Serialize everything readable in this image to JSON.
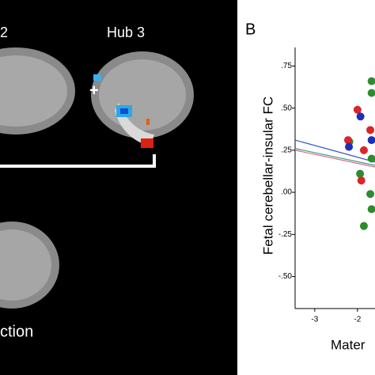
{
  "labels": {
    "hub2": "2",
    "hub3": "Hub 3",
    "plus": "+",
    "section": "ction",
    "panel": "B"
  },
  "chart_data": {
    "type": "scatter",
    "y_label": "Fetal cerebellar-insular FC",
    "x_label": "Mater",
    "xlim": [
      -3.46,
      -1.59
    ],
    "ylim": [
      -0.69,
      0.86
    ],
    "xticks": [
      -3,
      -2
    ],
    "yticks": [
      {
        "value": 0.75,
        "label": ".75"
      },
      {
        "value": 0.5,
        "label": ".50"
      },
      {
        "value": 0.25,
        "label": ".25"
      },
      {
        "value": 0,
        "label": ".00"
      },
      {
        "value": -0.25,
        "label": "-.25"
      },
      {
        "value": -0.5,
        "label": "-.50"
      }
    ],
    "series": [
      {
        "color": "#2e8b2e",
        "x": [
          -1.67,
          -1.67,
          -2.19,
          -1.67,
          -1.94,
          -1.7,
          -1.85,
          -1.67
        ],
        "values": [
          0.66,
          0.59,
          0.3,
          0.2,
          0.11,
          -0.01,
          -0.2,
          -0.1
        ]
      },
      {
        "color": "#d8262a",
        "x": [
          -2.0,
          -1.7,
          -2.22,
          -1.85,
          -1.91
        ],
        "values": [
          0.49,
          0.37,
          0.31,
          0.25,
          0.07
        ]
      },
      {
        "color": "#1c2fb8",
        "x": [
          -1.93,
          -2.2,
          -1.67
        ],
        "values": [
          0.45,
          0.27,
          0.31
        ]
      }
    ],
    "fits": [
      {
        "color": "#3050c0",
        "x": [
          -3.46,
          -1.59
        ],
        "values": [
          0.31,
          0.18
        ]
      },
      {
        "color": "#3a9a7a",
        "x": [
          -3.46,
          -1.59
        ],
        "values": [
          0.26,
          0.16
        ]
      },
      {
        "color": "#d06a8a",
        "x": [
          -3.46,
          -1.59
        ],
        "values": [
          0.25,
          0.15
        ]
      }
    ]
  }
}
